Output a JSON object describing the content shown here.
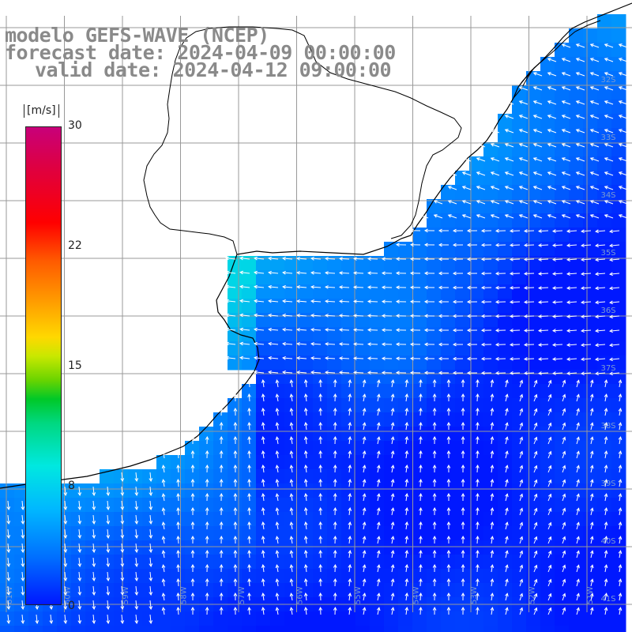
{
  "header": {
    "line1": "modelo GEFS-WAVE (NCEP)",
    "line2": "forecast date: 2024-04-09 00:00:00",
    "line3": "valid date: 2024-04-12 09:00:00"
  },
  "colorbar": {
    "unit": "[m/s]",
    "ticks": [
      "30",
      "22",
      "15",
      "8",
      "0"
    ],
    "tick_values": [
      30,
      22,
      15,
      8,
      0
    ],
    "colors": [
      "#c8007a",
      "#ff0000",
      "#ff9800",
      "#ffd800",
      "#00c828",
      "#00e8e0",
      "#0070ff",
      "#0018ff"
    ]
  },
  "map": {
    "land_color": "#ffffff",
    "coast_color": "#000000",
    "grid_color": "#999999",
    "arrow_color": "#ffffff",
    "lat_labels": [
      "32S",
      "33S",
      "34S",
      "35S",
      "36S",
      "37S",
      "38S",
      "39S",
      "40S",
      "41S"
    ],
    "lon_labels": [
      "61W",
      "60W",
      "59W",
      "58W",
      "57W",
      "56W",
      "55W",
      "54W",
      "53W",
      "52W",
      "51W"
    ]
  }
}
